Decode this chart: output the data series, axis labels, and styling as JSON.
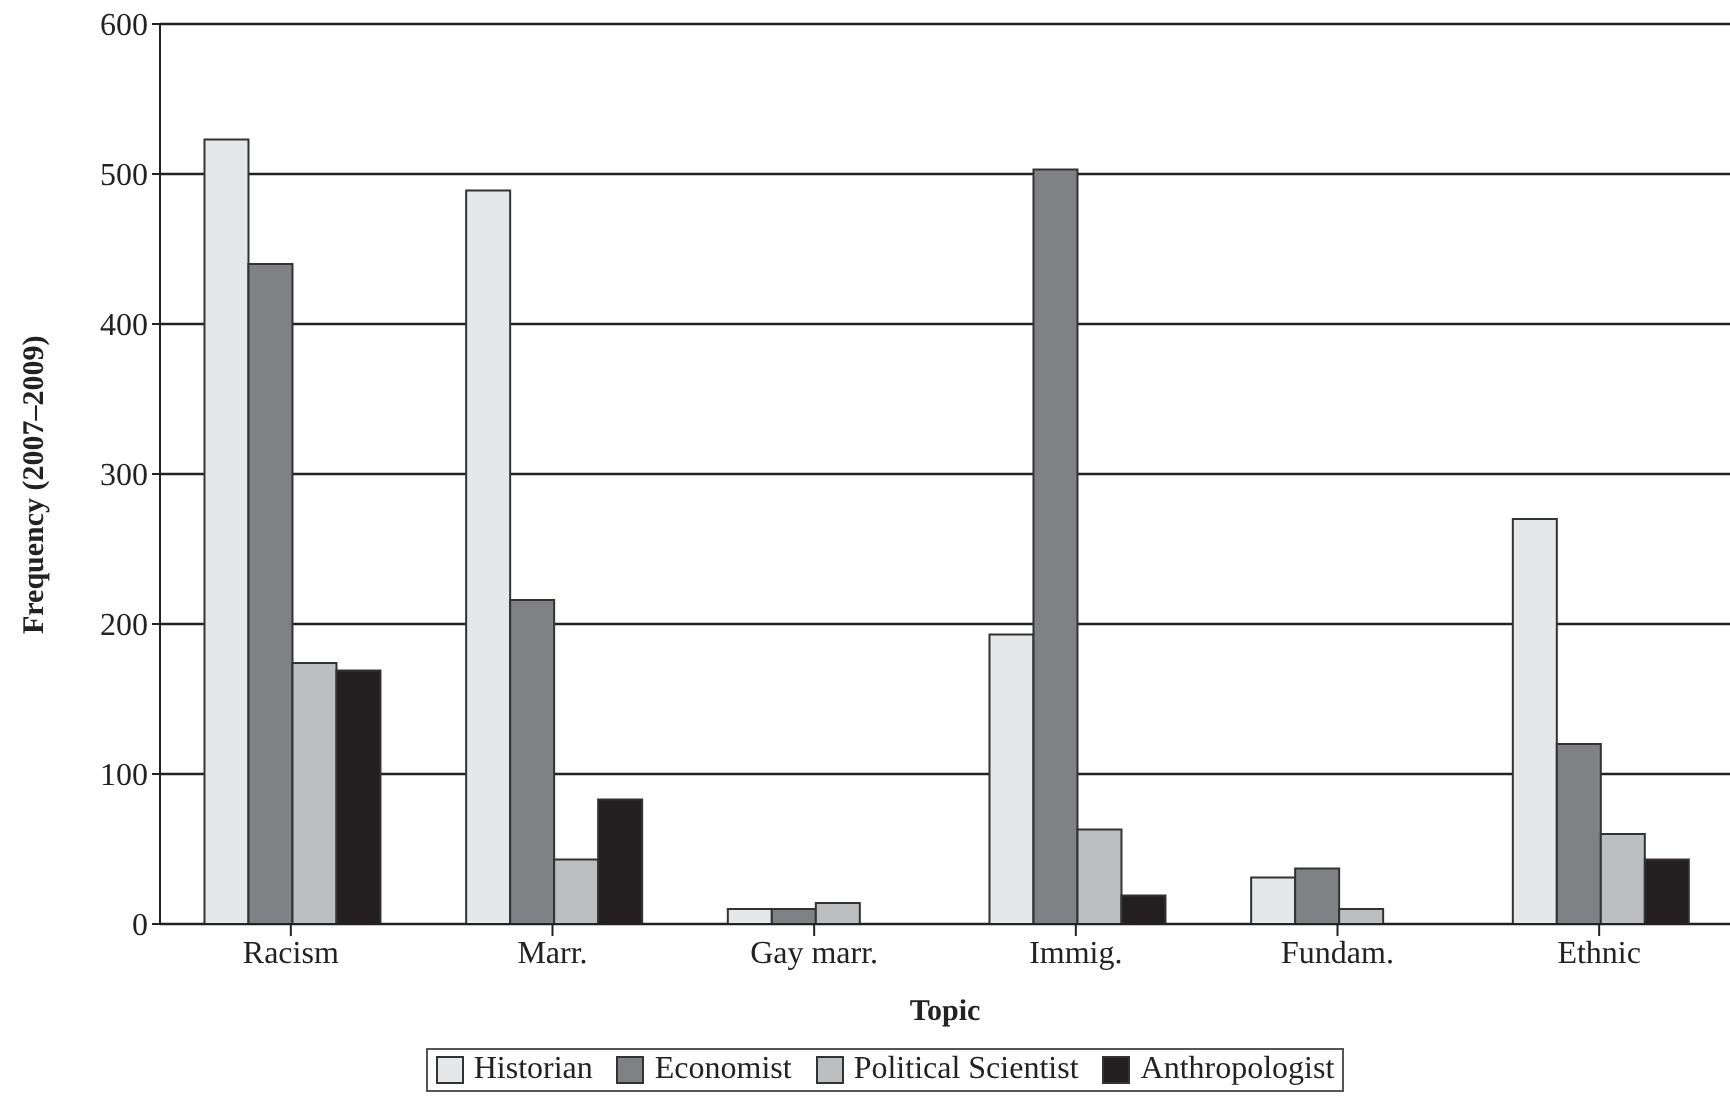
{
  "chart_data": {
    "type": "bar",
    "xlabel": "Topic",
    "ylabel": "Frequency (2007–2009)",
    "categories": [
      "Racism",
      "Marr.",
      "Gay marr.",
      "Immig.",
      "Fundam.",
      "Ethnic"
    ],
    "series": [
      {
        "name": "Historian",
        "color": "#e6e7e9",
        "values": [
          523,
          489,
          10,
          193,
          31,
          270
        ]
      },
      {
        "name": "Economist",
        "color": "#808184",
        "values": [
          440,
          216,
          10,
          503,
          37,
          120
        ]
      },
      {
        "name": "Political Scientist",
        "color": "#bcbec0",
        "values": [
          174,
          43,
          14,
          63,
          10,
          60
        ]
      },
      {
        "name": "Anthropologist",
        "color": "#231f20",
        "values": [
          169,
          83,
          0,
          19,
          0,
          43
        ]
      }
    ],
    "ylim": [
      0,
      600
    ],
    "yticks": [
      0,
      100,
      200,
      300,
      400,
      500,
      600
    ],
    "grid": "y",
    "legend": "bottom"
  }
}
